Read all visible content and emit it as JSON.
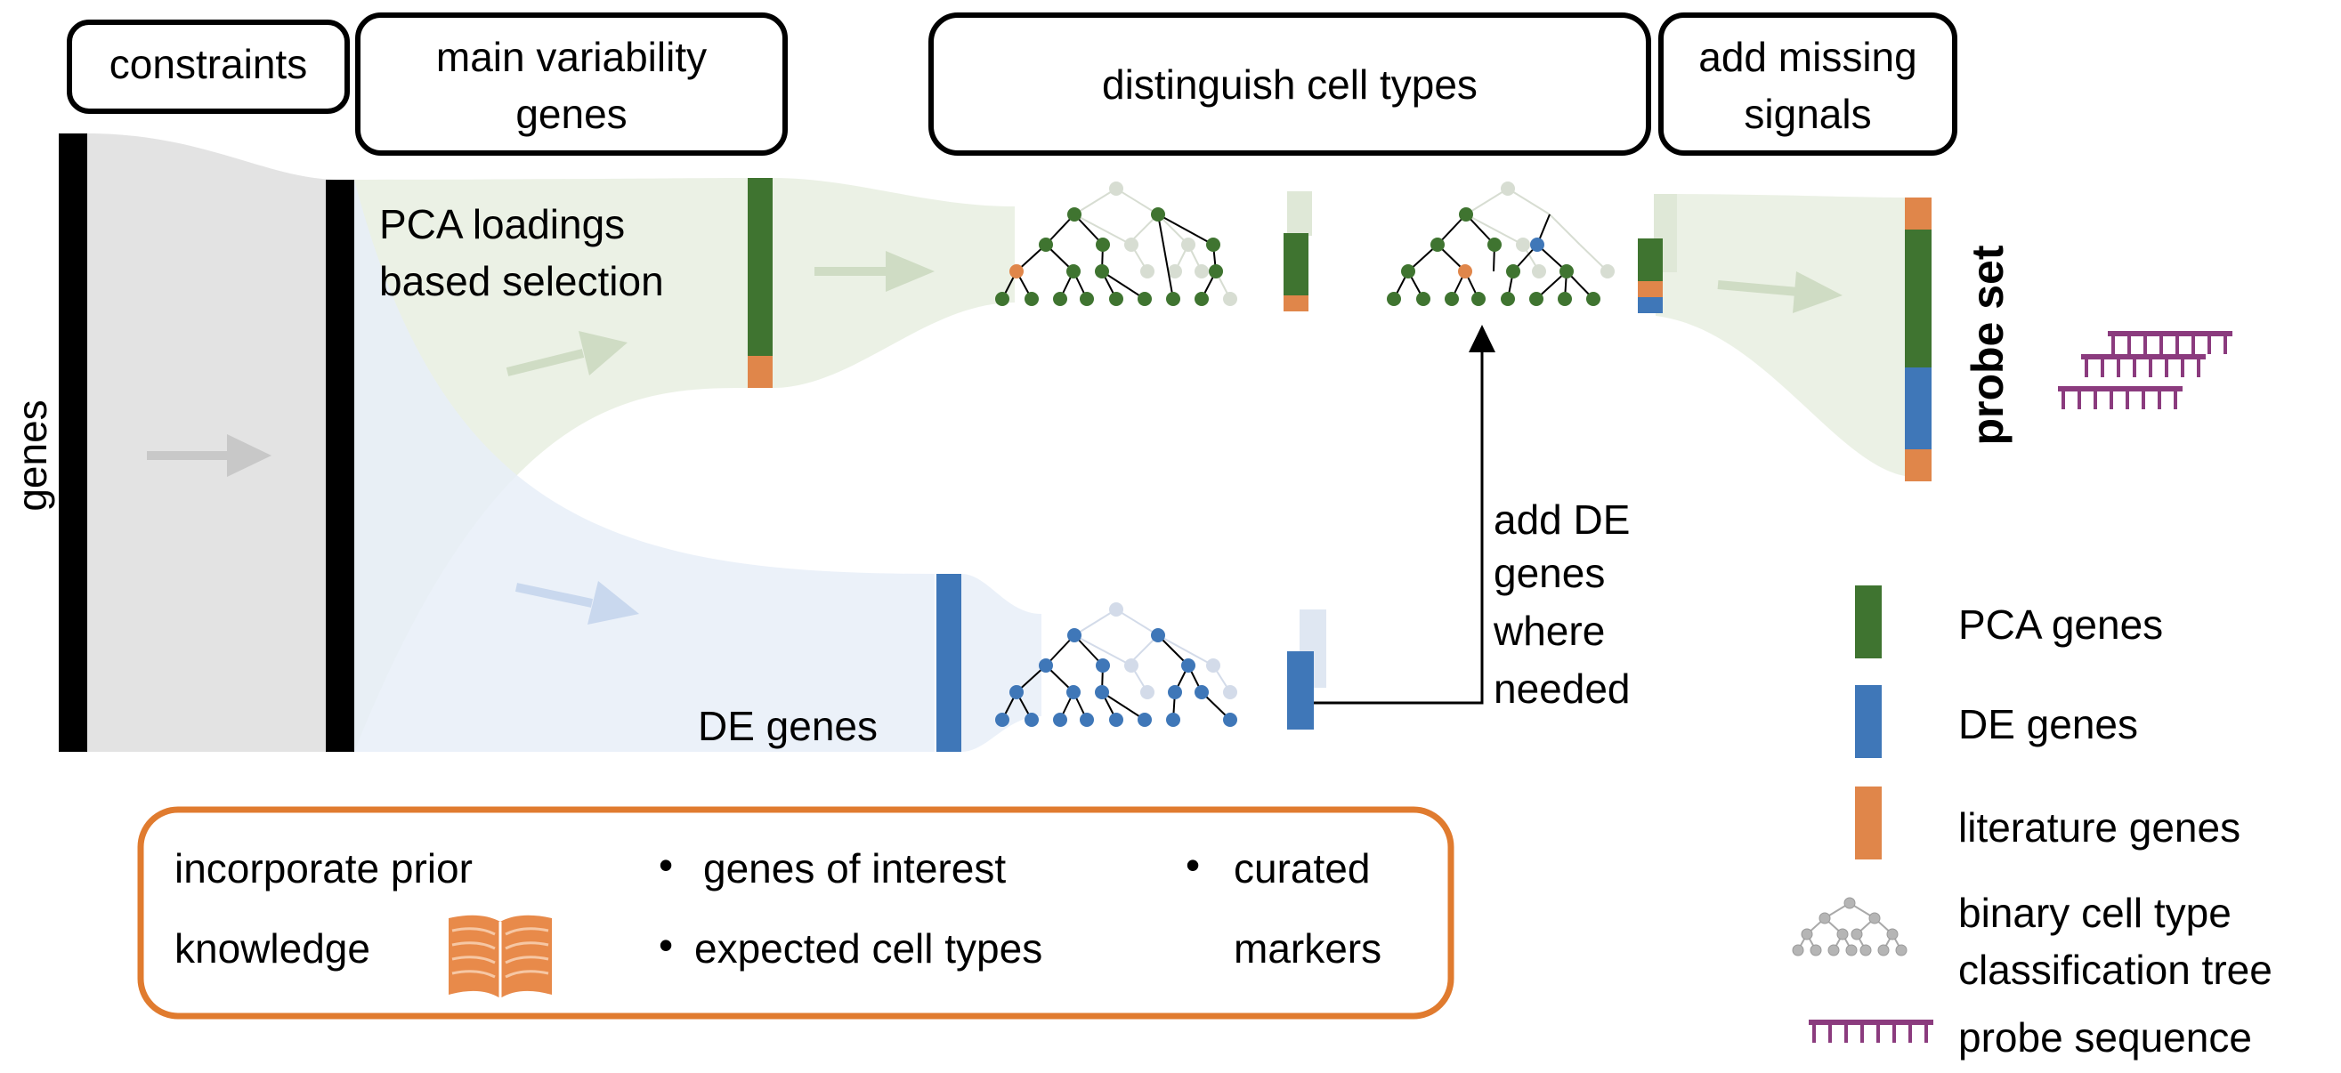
{
  "stages": {
    "constraints": "constraints",
    "main_variability_line1": "main variability",
    "main_variability_line2": "genes",
    "distinguish": "distinguish cell types",
    "missing_line1": "add missing",
    "missing_line2": "signals"
  },
  "axis_label": "genes",
  "pca_selection_line1": "PCA loadings",
  "pca_selection_line2": "based selection",
  "de_label": "DE genes",
  "add_de_lines": [
    "add DE",
    "genes",
    "where",
    "needed"
  ],
  "probe_set_label": "probe set",
  "legend": {
    "pca": "PCA genes",
    "de": "DE genes",
    "literature": "literature genes",
    "tree_line1": "binary cell type",
    "tree_line2": "classification tree",
    "probe": "probe sequence"
  },
  "prior": {
    "title_line1": "incorporate prior",
    "title_line2": "knowledge",
    "bullet1": "genes of interest",
    "bullet2": "expected cell types",
    "bullet3_line1": "curated",
    "bullet3_line2": "markers",
    "bullet_char": "•"
  },
  "colors": {
    "pca_green": "#3f7430",
    "de_blue": "#3f77b8",
    "literature_orange": "#e0864a",
    "prior_border": "#e07b2f",
    "probe_purple": "#8b3b7e",
    "flow_grey": "#e3e3e3",
    "flow_green": "#e8efe0",
    "flow_blue": "#e7eef8"
  },
  "icons": {
    "book": "open-book-icon",
    "tree": "classification-tree-icon",
    "probe": "probe-comb-icon"
  }
}
